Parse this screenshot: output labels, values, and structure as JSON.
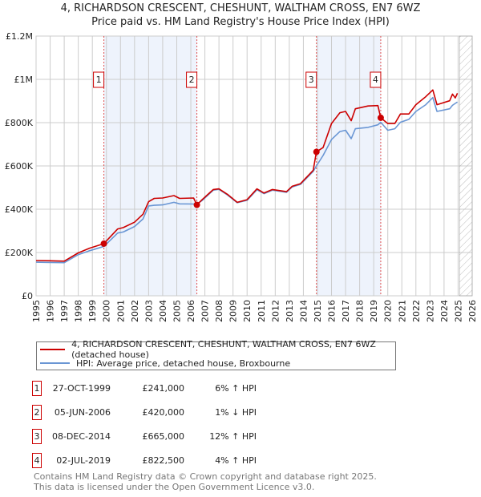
{
  "title": "4, RICHARDSON CRESCENT, CHESHUNT, WALTHAM CROSS, EN7 6WZ",
  "subtitle": "Price paid vs. HM Land Registry's House Price Index (HPI)",
  "colors": {
    "property": "#cc0000",
    "hpi": "#6a96d4",
    "shade": "#eef3fc",
    "grid": "#cccccc"
  },
  "chart_data": {
    "type": "line",
    "title": "Price paid vs. HM Land Registry's House Price Index (HPI)",
    "xlim": [
      1995,
      2026
    ],
    "ylim": [
      0,
      1200000
    ],
    "x_ticks": [
      "1995",
      "1996",
      "1997",
      "1998",
      "1999",
      "2000",
      "2001",
      "2002",
      "2003",
      "2004",
      "2005",
      "2006",
      "2007",
      "2008",
      "2009",
      "2010",
      "2011",
      "2012",
      "2013",
      "2014",
      "2015",
      "2016",
      "2017",
      "2018",
      "2019",
      "2020",
      "2021",
      "2022",
      "2023",
      "2024",
      "2025",
      "2026"
    ],
    "y_ticks": [
      {
        "v": 0,
        "label": "£0"
      },
      {
        "v": 200000,
        "label": "£200K"
      },
      {
        "v": 400000,
        "label": "£400K"
      },
      {
        "v": 600000,
        "label": "£600K"
      },
      {
        "v": 800000,
        "label": "£800K"
      },
      {
        "v": 1000000,
        "label": "£1M"
      },
      {
        "v": 1200000,
        "label": "£1.2M"
      }
    ],
    "grid": true,
    "forecast_hatch_from": 2025.1,
    "series": [
      {
        "name": "4, RICHARDSON CRESCENT, CHESHUNT, WALTHAM CROSS, EN7 6WZ (detached house)",
        "color": "#cc0000",
        "x": [
          1995,
          1996,
          1997,
          1998,
          1998.8,
          1999.82,
          2000.8,
          2001.2,
          2002,
          2002.6,
          2003,
          2003.4,
          2004,
          2004.8,
          2005.2,
          2006.2,
          2006.43,
          2006.8,
          2007.6,
          2008,
          2008.6,
          2009.3,
          2010,
          2010.7,
          2011.2,
          2011.8,
          2012.8,
          2013.2,
          2013.8,
          2014.7,
          2014.93,
          2015.4,
          2016,
          2016.6,
          2017,
          2017.4,
          2017.7,
          2018.6,
          2019.3,
          2019.5,
          2020,
          2020.5,
          2020.9,
          2021.5,
          2022,
          2022.7,
          2023.2,
          2023.5,
          2024.4,
          2024.6,
          2024.8,
          2024.95
        ],
        "y": [
          163000,
          162000,
          160000,
          198000,
          220000,
          241000,
          309000,
          315000,
          340000,
          377000,
          435000,
          450000,
          452000,
          463000,
          450000,
          452000,
          420000,
          444000,
          491000,
          494000,
          469000,
          432000,
          444000,
          494000,
          475000,
          491000,
          481000,
          506000,
          518000,
          580000,
          665000,
          685000,
          796000,
          846000,
          852000,
          809000,
          864000,
          877000,
          879000,
          822500,
          796000,
          796000,
          840000,
          840000,
          883000,
          920000,
          951000,
          883000,
          901000,
          932000,
          914000,
          936000
        ]
      },
      {
        "name": "HPI: Average price, detached house, Broxbourne",
        "color": "#6a96d4",
        "x": [
          1995,
          1996,
          1997,
          1998,
          1998.8,
          1999.82,
          2000.8,
          2001.2,
          2002,
          2002.6,
          2003,
          2003.4,
          2004,
          2004.8,
          2005.2,
          2006.2,
          2006.43,
          2006.8,
          2007.6,
          2008,
          2008.6,
          2009.3,
          2010,
          2010.7,
          2011.2,
          2011.8,
          2012.8,
          2013.2,
          2013.8,
          2014.7,
          2014.93,
          2015.4,
          2016,
          2016.6,
          2017,
          2017.4,
          2017.7,
          2018.6,
          2019.3,
          2019.5,
          2020,
          2020.5,
          2020.9,
          2021.5,
          2022,
          2022.7,
          2023.2,
          2023.5,
          2024.4,
          2024.6,
          2024.8,
          2024.95
        ],
        "y": [
          155000,
          154000,
          153000,
          190000,
          208000,
          228000,
          290000,
          295000,
          320000,
          355000,
          415000,
          418000,
          420000,
          432000,
          425000,
          424000,
          425000,
          440000,
          488000,
          492000,
          466000,
          430000,
          441000,
          490000,
          472000,
          488000,
          478000,
          503000,
          515000,
          575000,
          600000,
          648000,
          722000,
          759000,
          765000,
          726000,
          772000,
          778000,
          790000,
          802000,
          765000,
          772000,
          802000,
          815000,
          852000,
          883000,
          916000,
          852000,
          864000,
          880000,
          889000,
          895000
        ]
      }
    ],
    "sales": [
      {
        "id": "1",
        "x": 1999.82,
        "y": 241000
      },
      {
        "id": "2",
        "x": 2006.43,
        "y": 420000
      },
      {
        "id": "3",
        "x": 2014.93,
        "y": 665000
      },
      {
        "id": "4",
        "x": 2019.5,
        "y": 822500
      }
    ],
    "shaded_ranges": [
      [
        1999.82,
        2006.43
      ],
      [
        2014.93,
        2019.5
      ]
    ]
  },
  "legend": {
    "property": "4, RICHARDSON CRESCENT, CHESHUNT, WALTHAM CROSS, EN7 6WZ (detached house)",
    "hpi": "HPI: Average price, detached house, Broxbourne"
  },
  "transactions": [
    {
      "num": "1",
      "date": "27-OCT-1999",
      "price": "£241,000",
      "hpi": "6% ↑ HPI"
    },
    {
      "num": "2",
      "date": "05-JUN-2006",
      "price": "£420,000",
      "hpi": "1% ↓ HPI"
    },
    {
      "num": "3",
      "date": "08-DEC-2014",
      "price": "£665,000",
      "hpi": "12% ↑ HPI"
    },
    {
      "num": "4",
      "date": "02-JUL-2019",
      "price": "£822,500",
      "hpi": "4% ↑ HPI"
    }
  ],
  "footer": {
    "line1": "Contains HM Land Registry data © Crown copyright and database right 2025.",
    "line2": "This data is licensed under the Open Government Licence v3.0."
  }
}
